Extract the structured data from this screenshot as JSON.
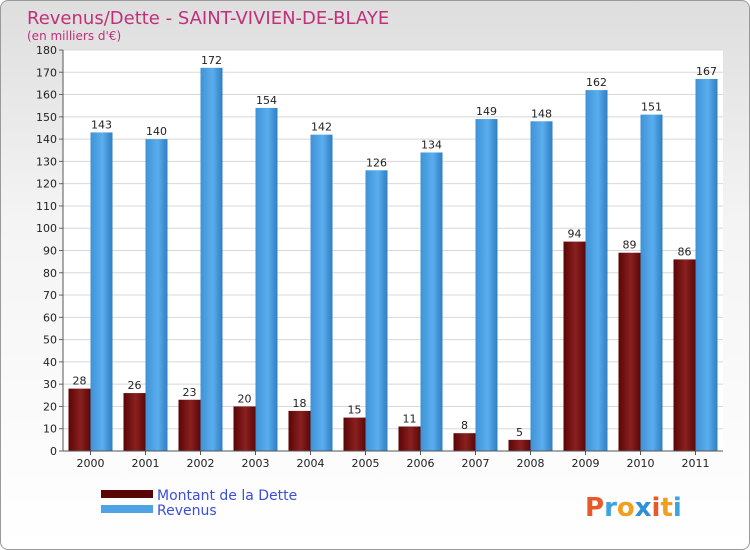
{
  "chart_data": {
    "type": "bar",
    "title": "Revenus/Dette - SAINT-VIVIEN-DE-BLAYE",
    "subtitle": "(en milliers d'€)",
    "categories": [
      "2000",
      "2001",
      "2002",
      "2003",
      "2004",
      "2005",
      "2006",
      "2007",
      "2008",
      "2009",
      "2010",
      "2011"
    ],
    "series": [
      {
        "name": "Montant de la Dette",
        "color": "#7a1010",
        "values": [
          28,
          26,
          23,
          20,
          18,
          15,
          11,
          8,
          5,
          94,
          89,
          86
        ]
      },
      {
        "name": "Revenus",
        "color": "#4ea3e6",
        "values": [
          143,
          140,
          172,
          154,
          142,
          126,
          134,
          149,
          148,
          162,
          151,
          167
        ]
      }
    ],
    "ylim": [
      0,
      180
    ],
    "yticks": [
      0,
      10,
      20,
      30,
      40,
      50,
      60,
      70,
      80,
      90,
      100,
      110,
      120,
      130,
      140,
      150,
      160,
      170,
      180
    ],
    "grid": true,
    "legend": "bottom-left"
  },
  "branding": {
    "letters": [
      "P",
      "r",
      "o",
      "x",
      "i",
      "t",
      "i"
    ],
    "colors": [
      "#e8592a",
      "#3aa3e0",
      "#f0a020",
      "#2f8fd8",
      "#e8592a",
      "#f0a020",
      "#3aa3e0"
    ]
  }
}
